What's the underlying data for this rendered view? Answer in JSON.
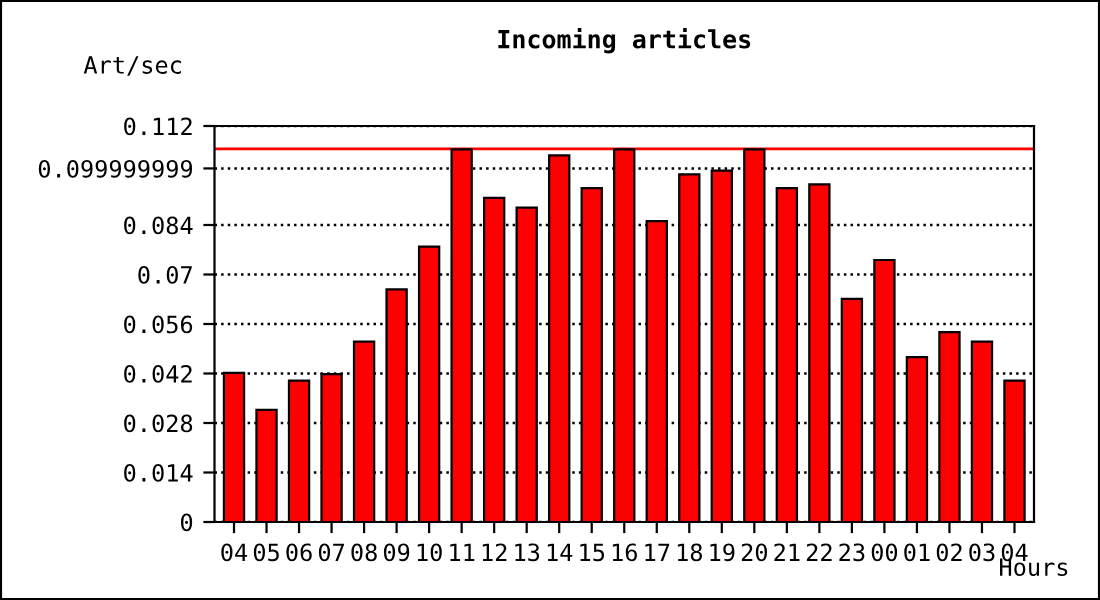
{
  "chart_data": {
    "type": "bar",
    "title": "Incoming articles",
    "ylabel": "Art/sec",
    "xlabel": "Hours",
    "categories": [
      "04",
      "05",
      "06",
      "07",
      "08",
      "09",
      "10",
      "11",
      "12",
      "13",
      "14",
      "15",
      "16",
      "17",
      "18",
      "19",
      "20",
      "21",
      "22",
      "23",
      "00",
      "01",
      "02",
      "03",
      "04"
    ],
    "series": [
      {
        "color": "#ff0000",
        "values": [
          0.0422,
          0.0317,
          0.04,
          0.0418,
          0.051,
          0.0658,
          0.0779,
          0.1054,
          0.0917,
          0.0889,
          0.1037,
          0.0944,
          0.1054,
          0.0851,
          0.0983,
          0.0994,
          0.1054,
          0.0944,
          0.0955,
          0.0631,
          0.0741,
          0.0466,
          0.0537,
          0.051,
          0.04
        ]
      }
    ],
    "ylim": [
      0,
      0.112
    ],
    "yticks": [
      0,
      0.014,
      0.028,
      0.042,
      0.056,
      0.07,
      0.084,
      0.099999999,
      0.112
    ],
    "grid": "y",
    "line_style": "dotted",
    "ref_lines": [
      {
        "axis": "y",
        "value": 0.1055,
        "color": "#ff0000"
      }
    ],
    "legend": false
  }
}
